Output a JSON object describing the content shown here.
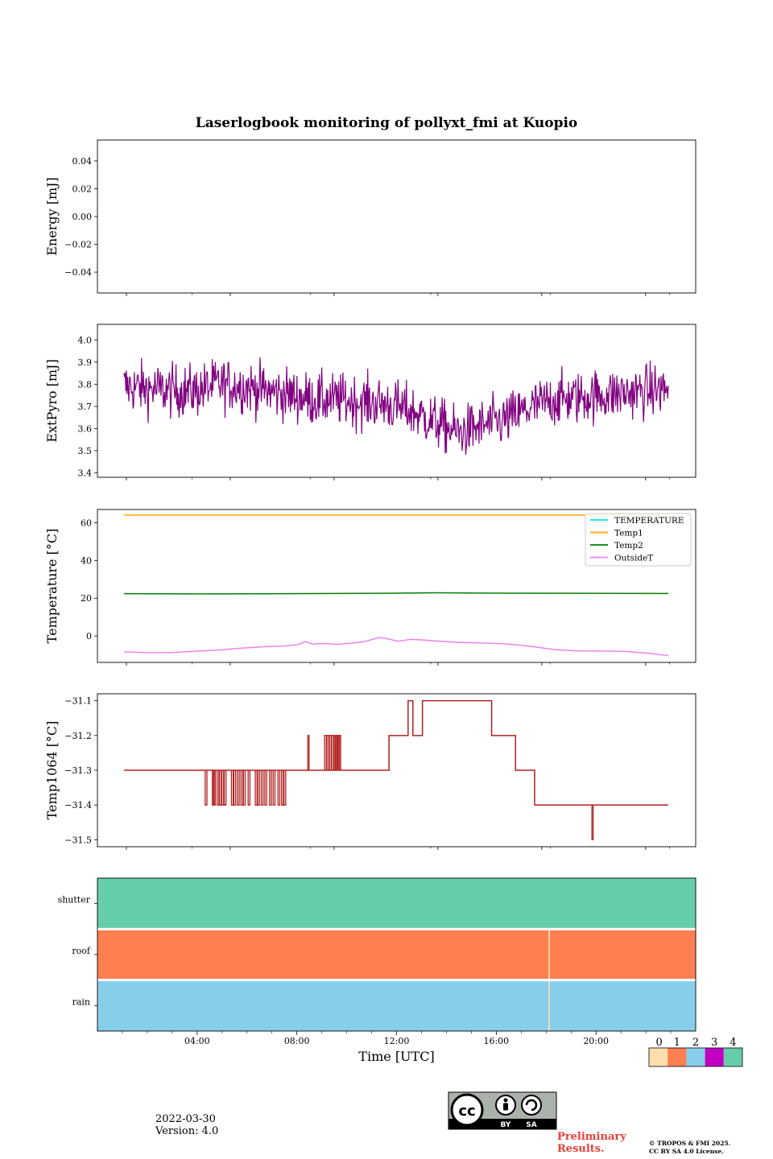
{
  "title": "Laserlogbook monitoring of pollyxt_fmi at Kuopio",
  "footer": {
    "date": "2022-03-30",
    "version": "Version: 4.0",
    "preliminary_line1": "Preliminary",
    "preliminary_line2": "Results.",
    "copyright_line1": "© TROPOS & FMI 2025.",
    "copyright_line2": "CC BY SA 4.0 License.",
    "license_badge": {
      "cc": "cc",
      "by": "BY",
      "sa": "SA"
    }
  },
  "chart_data": [
    {
      "id": "energy",
      "type": "line",
      "ylabel": "Energy [mJ]",
      "ylim": [
        -0.055,
        0.055
      ],
      "yticks": [
        -0.04,
        -0.02,
        0.0,
        0.02,
        0.04
      ],
      "ytick_labels": [
        "−0.04",
        "−0.02",
        "0.00",
        "0.02",
        "0.04"
      ],
      "series": []
    },
    {
      "id": "extpyro",
      "type": "line",
      "ylabel": "ExtPyro [mJ]",
      "ylim": [
        3.38,
        4.07
      ],
      "yticks": [
        3.4,
        3.5,
        3.6,
        3.7,
        3.8,
        3.9,
        4.0
      ],
      "ytick_labels": [
        "3.4",
        "3.5",
        "3.6",
        "3.7",
        "3.8",
        "3.9",
        "4.0"
      ],
      "series": [
        {
          "name": "ExtPyro",
          "color": "#800080",
          "x_hours": [
            1,
            2,
            3,
            4,
            5,
            6,
            7,
            8,
            9,
            10,
            11,
            12,
            13,
            14,
            15,
            16,
            17,
            18,
            19,
            20,
            21,
            22,
            23,
            23.8
          ],
          "mean": [
            3.79,
            3.78,
            3.77,
            3.77,
            3.8,
            3.79,
            3.77,
            3.75,
            3.73,
            3.73,
            3.72,
            3.71,
            3.68,
            3.63,
            3.58,
            3.61,
            3.64,
            3.69,
            3.73,
            3.74,
            3.75,
            3.76,
            3.77,
            3.78
          ],
          "noise_amplitude": 0.06
        }
      ]
    },
    {
      "id": "temperature",
      "type": "line",
      "ylabel": "Temperature [°C]",
      "ylim": [
        -14,
        67
      ],
      "yticks": [
        0,
        20,
        40,
        60
      ],
      "ytick_labels": [
        "0",
        "20",
        "40",
        "60"
      ],
      "legend_position": "top-right",
      "series": [
        {
          "name": "TEMPERATURE",
          "color": "#00e5ee",
          "x_hours": [],
          "values": []
        },
        {
          "name": "Temp1",
          "color": "#ffa500",
          "x_hours": [
            1,
            23.8
          ],
          "values": [
            64,
            64
          ]
        },
        {
          "name": "Temp2",
          "color": "#008000",
          "x_hours": [
            1,
            4,
            8,
            12,
            14,
            16,
            20,
            23.8
          ],
          "values": [
            22.4,
            22.3,
            22.4,
            22.6,
            22.9,
            22.7,
            22.6,
            22.5
          ]
        },
        {
          "name": "OutsideT",
          "color": "#ee82ee",
          "x_hours": [
            1,
            2,
            3,
            4,
            5,
            6,
            7,
            7.7,
            8.3,
            8.6,
            8.9,
            9.3,
            10,
            11,
            11.7,
            12,
            12.5,
            13,
            13.5,
            14,
            15,
            16,
            17,
            18,
            19,
            20,
            21,
            22,
            23,
            23.8
          ],
          "values": [
            -8.4,
            -8.9,
            -8.8,
            -8.1,
            -7.4,
            -6.4,
            -5.6,
            -5.4,
            -4.5,
            -3.0,
            -4.3,
            -4.0,
            -4.4,
            -3.2,
            -0.8,
            -1.4,
            -2.8,
            -1.8,
            -2.1,
            -2.6,
            -3.4,
            -3.7,
            -4.2,
            -5.4,
            -7.2,
            -7.9,
            -8.0,
            -8.2,
            -9.2,
            -10.4
          ]
        }
      ]
    },
    {
      "id": "temp1064",
      "type": "line",
      "ylabel": "Temp1064 [°C]",
      "ylim": [
        -31.52,
        -31.08
      ],
      "yticks": [
        -31.5,
        -31.4,
        -31.3,
        -31.2,
        -31.1
      ],
      "ytick_labels": [
        "−31.5",
        "−31.4",
        "−31.3",
        "−31.2",
        "−31.1"
      ],
      "series": [
        {
          "name": "Temp1064",
          "color": "#b22222",
          "base_steps": [
            {
              "x0": 1.0,
              "x1": 12.1,
              "value": -31.3
            },
            {
              "x0": 12.1,
              "x1": 12.9,
              "value": -31.2
            },
            {
              "x0": 12.9,
              "x1": 13.1,
              "value": -31.1
            },
            {
              "x0": 13.1,
              "x1": 13.5,
              "value": -31.2
            },
            {
              "x0": 13.5,
              "x1": 16.4,
              "value": -31.1
            },
            {
              "x0": 16.4,
              "x1": 17.4,
              "value": -31.2
            },
            {
              "x0": 17.4,
              "x1": 18.2,
              "value": -31.3
            },
            {
              "x0": 18.2,
              "x1": 23.8,
              "value": -31.4
            }
          ],
          "dropout_spikes_hours": [
            4.4,
            4.7,
            4.75,
            4.9,
            5.0,
            5.1,
            5.2,
            5.5,
            5.6,
            5.75,
            5.9,
            6.0,
            6.2,
            6.5,
            6.6,
            6.75,
            6.9,
            7.1,
            7.25,
            7.45,
            7.6,
            7.7
          ],
          "dropout_value": -31.4,
          "rise_spikes_hours": [
            9.4,
            9.5,
            9.6,
            9.7,
            9.8,
            9.85,
            9.95,
            10.0
          ],
          "rise_value": -31.2,
          "isolated_points": [
            {
              "x": 8.7,
              "value": -31.2
            },
            {
              "x": 20.6,
              "value": -31.5
            }
          ]
        }
      ]
    },
    {
      "id": "status",
      "type": "heatmap",
      "categories": [
        "shutter",
        "roof",
        "rain"
      ],
      "rows": [
        {
          "name": "shutter",
          "segments": [
            {
              "x0": 0,
              "x1": 24,
              "state": 4
            }
          ]
        },
        {
          "name": "roof",
          "segments": [
            {
              "x0": 0,
              "x1": 18.1,
              "state": 1
            },
            {
              "x0": 18.1,
              "x1": 18.15,
              "state": 0
            },
            {
              "x0": 18.15,
              "x1": 24,
              "state": 1
            }
          ]
        },
        {
          "name": "rain",
          "segments": [
            {
              "x0": 0,
              "x1": 18.1,
              "state": 2
            },
            {
              "x0": 18.1,
              "x1": 18.15,
              "state": 0
            },
            {
              "x0": 18.15,
              "x1": 24,
              "state": 2
            }
          ]
        }
      ]
    }
  ],
  "x_axis": {
    "label": "Time [UTC]",
    "range_hours": [
      0,
      24
    ],
    "major_ticks_hours": [
      4,
      8,
      12,
      16,
      20
    ],
    "major_tick_labels": [
      "04:00",
      "08:00",
      "12:00",
      "16:00",
      "20:00"
    ],
    "minor_ticks_hours": [
      1,
      2,
      3,
      5,
      6,
      7,
      9,
      10,
      11,
      13,
      14,
      15,
      17,
      18,
      19,
      21,
      22,
      23
    ],
    "panel_ticks_hours": [
      1.1,
      5.45,
      9.8,
      14.15,
      18.5,
      22.85
    ],
    "panel_minor_ticks_hours": [
      3.85,
      8.8,
      13.85,
      18.85,
      23.85
    ]
  },
  "colorbar": {
    "ticks": [
      "0",
      "1",
      "2",
      "3",
      "4"
    ],
    "colors": [
      "#ffdead",
      "#ff7f50",
      "#87ceeb",
      "#c000c0",
      "#66cdaa"
    ]
  }
}
